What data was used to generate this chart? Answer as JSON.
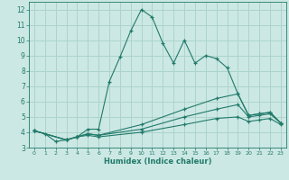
{
  "xlabel": "Humidex (Indice chaleur)",
  "background_color": "#cce8e4",
  "grid_color": "#aad4cc",
  "line_color": "#217a6a",
  "xlim": [
    -0.5,
    23.5
  ],
  "ylim": [
    3.0,
    12.5
  ],
  "yticks": [
    3,
    4,
    5,
    6,
    7,
    8,
    9,
    10,
    11,
    12
  ],
  "xticks": [
    0,
    1,
    2,
    3,
    4,
    5,
    6,
    7,
    8,
    9,
    10,
    11,
    12,
    13,
    14,
    15,
    16,
    17,
    18,
    19,
    20,
    21,
    22,
    23
  ],
  "series": [
    {
      "x": [
        0,
        1,
        2,
        3,
        4,
        5,
        6,
        7,
        8,
        9,
        10,
        11,
        12,
        13,
        14,
        15,
        16,
        17,
        18,
        19,
        20,
        21,
        22,
        23
      ],
      "y": [
        4.1,
        3.9,
        3.4,
        3.5,
        3.7,
        4.2,
        4.2,
        7.3,
        8.9,
        10.6,
        12.0,
        11.5,
        9.8,
        8.5,
        10.0,
        8.5,
        9.0,
        8.8,
        8.2,
        6.5,
        5.1,
        5.2,
        5.3,
        4.6
      ]
    },
    {
      "x": [
        0,
        3,
        4,
        5,
        6,
        10,
        14,
        17,
        19,
        20,
        21,
        22,
        23
      ],
      "y": [
        4.1,
        3.5,
        3.7,
        3.9,
        3.8,
        4.5,
        5.5,
        6.2,
        6.5,
        5.1,
        5.2,
        5.3,
        4.6
      ]
    },
    {
      "x": [
        0,
        3,
        4,
        5,
        6,
        10,
        14,
        17,
        19,
        20,
        21,
        22,
        23
      ],
      "y": [
        4.1,
        3.5,
        3.7,
        3.9,
        3.8,
        4.2,
        5.0,
        5.5,
        5.8,
        5.0,
        5.1,
        5.2,
        4.6
      ]
    },
    {
      "x": [
        0,
        3,
        4,
        5,
        6,
        10,
        14,
        17,
        19,
        20,
        21,
        22,
        23
      ],
      "y": [
        4.1,
        3.5,
        3.7,
        3.8,
        3.7,
        4.0,
        4.5,
        4.9,
        5.0,
        4.7,
        4.8,
        4.9,
        4.5
      ]
    }
  ]
}
